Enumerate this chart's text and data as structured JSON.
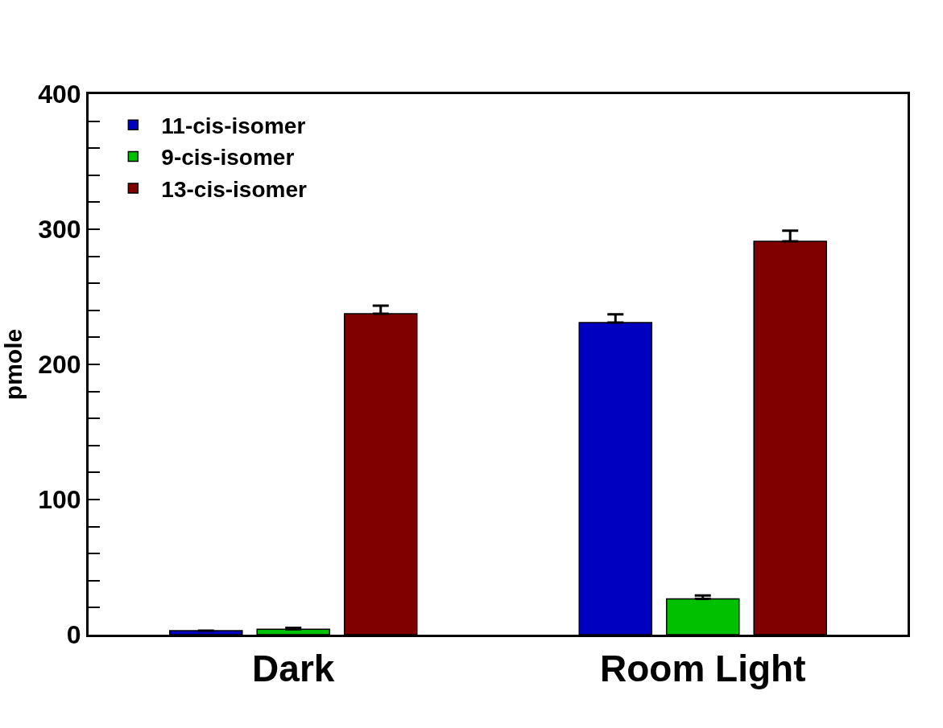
{
  "chart_data": {
    "type": "bar",
    "ylabel": "pmole",
    "categories": [
      "Dark",
      "Room Light"
    ],
    "series": [
      {
        "name": "11-cis-isomer",
        "color": "#0000c0",
        "values": [
          3,
          231
        ],
        "errors": [
          null,
          6
        ]
      },
      {
        "name": "9-cis-isomer",
        "color": "#00c000",
        "values": [
          4,
          26.5
        ],
        "errors": [
          1,
          2.5
        ]
      },
      {
        "name": "13-cis-isomer",
        "color": "#800000",
        "values": [
          237.5,
          291
        ],
        "errors": [
          6,
          8
        ]
      }
    ],
    "ylim": [
      0,
      400
    ],
    "yticks": [
      0,
      {
        "value": 20,
        "label": null
      },
      {
        "value": 40,
        "label": null
      },
      {
        "value": 60,
        "label": null
      },
      {
        "value": 80,
        "label": null
      },
      100,
      {
        "value": 120,
        "label": null
      },
      {
        "value": 140,
        "label": null
      },
      {
        "value": 160,
        "label": null
      },
      {
        "value": 180,
        "label": null
      },
      200,
      {
        "value": 220,
        "label": null
      },
      {
        "value": 240,
        "label": null
      },
      {
        "value": 260,
        "label": null
      },
      {
        "value": 280,
        "label": null
      },
      300,
      {
        "value": 320,
        "label": null
      },
      {
        "value": 340,
        "label": null
      },
      {
        "value": 360,
        "label": null
      },
      {
        "value": 380,
        "label": null
      },
      400
    ],
    "legend": "top left"
  }
}
